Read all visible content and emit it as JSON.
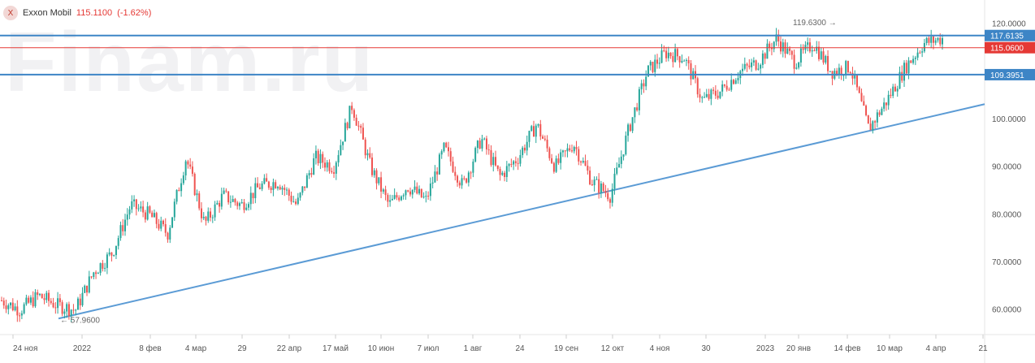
{
  "header": {
    "icon": "x-icon",
    "icon_glyph": "X",
    "name": "Exxon Mobil",
    "price": "115.1100",
    "change": "(-1.62%)"
  },
  "watermark": "Finam.ru",
  "colors": {
    "up": "#26a69a",
    "down": "#ef5350",
    "level": "#3d85c6",
    "price_line": "#e53935",
    "trend": "#5b9bd5",
    "axis_text": "#555555"
  },
  "chart_data": {
    "type": "candlestick",
    "ylim": [
      55,
      122
    ],
    "y_ticks": [
      {
        "value": 120,
        "label": "120.0000"
      },
      {
        "value": 100,
        "label": "100.0000"
      },
      {
        "value": 90,
        "label": "90.0000"
      },
      {
        "value": 80,
        "label": "80.0000"
      },
      {
        "value": 70,
        "label": "70.0000"
      },
      {
        "value": 60,
        "label": "60.0000"
      }
    ],
    "x_labels": [
      "24 ноя",
      "2022",
      "8 фев",
      "4 мар",
      "29",
      "22 апр",
      "17 май",
      "10 июн",
      "7 июл",
      "1 авг",
      "24",
      "19 сен",
      "12 окт",
      "4 ноя",
      "30",
      "2023",
      "20 янв",
      "14 фев",
      "10 мар",
      "4 апр",
      "21"
    ],
    "levels": [
      {
        "value": 117.6135,
        "label": "117.6135",
        "style": "resistance"
      },
      {
        "value": 115.06,
        "label": "115.0600",
        "style": "price"
      },
      {
        "value": 109.3951,
        "label": "109.3951",
        "style": "support"
      }
    ],
    "annotations": [
      {
        "text": "57.9600",
        "value": 57.96,
        "kind": "low"
      },
      {
        "text": "119.6300",
        "value": 119.63,
        "kind": "high"
      }
    ],
    "trend_line": {
      "start_value": 58.2,
      "end_value": 103.2
    },
    "path_anchors": [
      62,
      60,
      63,
      61,
      60,
      68,
      72,
      82,
      80,
      76,
      92,
      78,
      84,
      82,
      86,
      87,
      82,
      92,
      90,
      103,
      90,
      82,
      86,
      83,
      94,
      86,
      96,
      88,
      92,
      99,
      90,
      95,
      87,
      84,
      98,
      110,
      114,
      113,
      104,
      106,
      110,
      112,
      117,
      112,
      116,
      110,
      111,
      98,
      104,
      111,
      116,
      117
    ]
  }
}
